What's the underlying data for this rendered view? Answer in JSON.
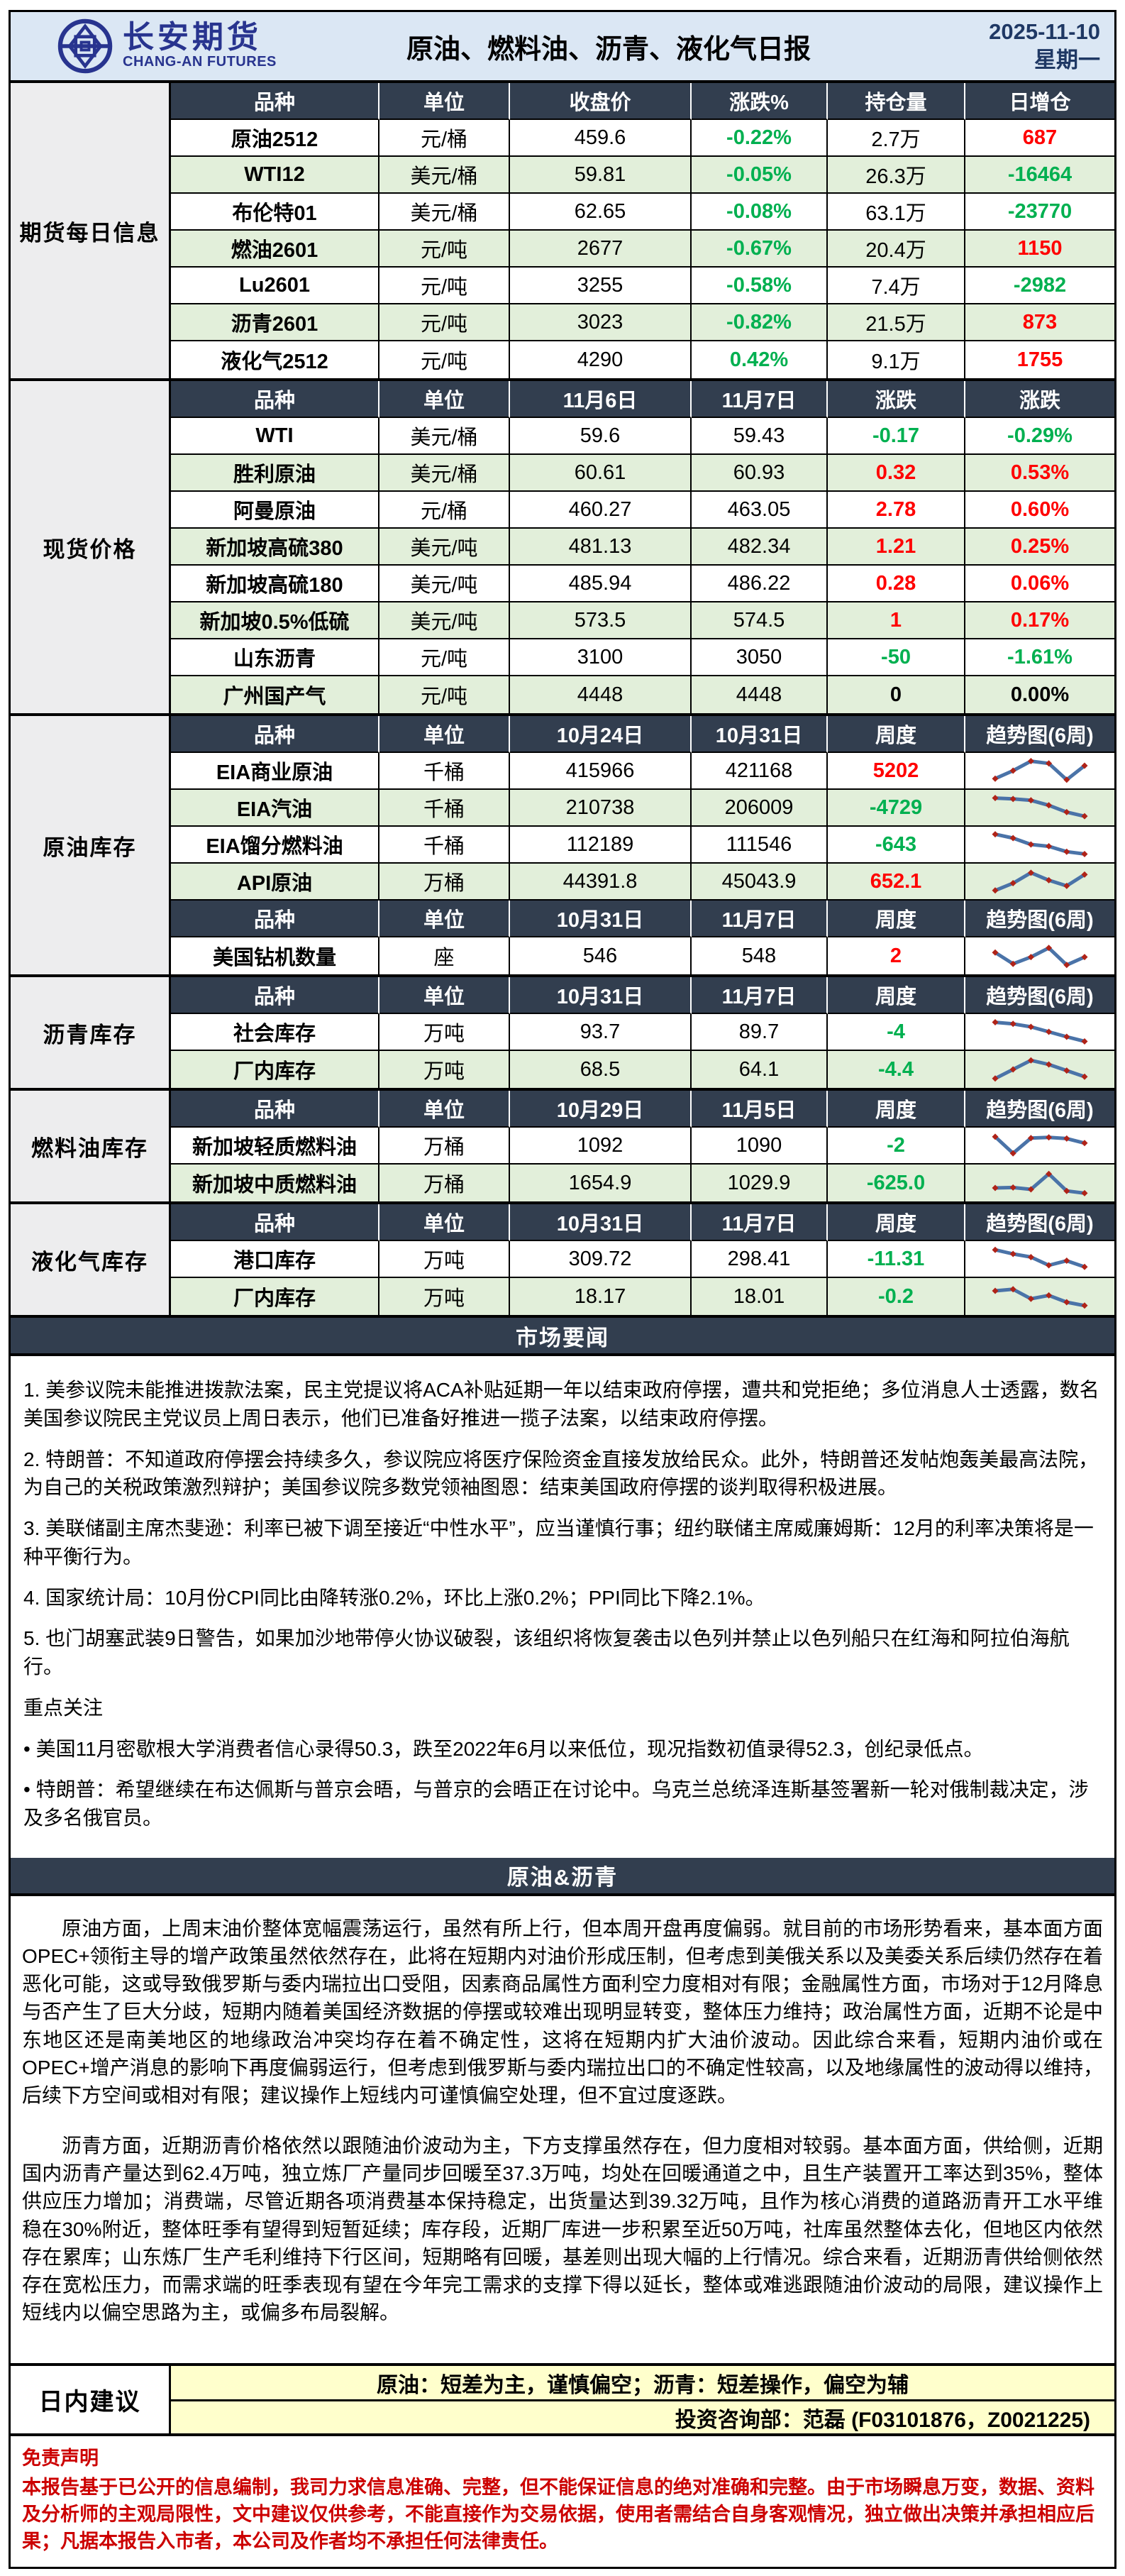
{
  "colors": {
    "top_bg": "#dbe7f4",
    "brand_blue": "#28348f",
    "accent_navy": "#1f3864",
    "header_bg": "#323e4f",
    "row_alt_green": "#e2efda",
    "label_gray": "#ededee",
    "up_red": "#ff0000",
    "down_green": "#00b050",
    "advice_yellow": "#ffffcc",
    "disclaimer_red": "#cc0000",
    "spark_line": "#4a73a8",
    "spark_marker": "#b02318"
  },
  "header": {
    "brand_cn": "长安期货",
    "brand_en": "CHANG-AN FUTURES",
    "title": "原油、燃料油、沥青、液化气日报",
    "date": "2025-11-10",
    "weekday": "星期一"
  },
  "table_sections": [
    {
      "id": "futures",
      "label": "期货每日信息",
      "blocks": [
        {
          "headers": [
            "品种",
            "单位",
            "收盘价",
            "涨跌%",
            "持仓量",
            "日增仓"
          ],
          "rows": [
            [
              {
                "t": "原油2512"
              },
              {
                "t": "元/桶"
              },
              {
                "t": "459.6"
              },
              {
                "t": "-0.22%",
                "c": "green"
              },
              {
                "t": "2.7万"
              },
              {
                "t": "687",
                "c": "red"
              }
            ],
            [
              {
                "t": "WTI12"
              },
              {
                "t": "美元/桶"
              },
              {
                "t": "59.81"
              },
              {
                "t": "-0.05%",
                "c": "green"
              },
              {
                "t": "26.3万"
              },
              {
                "t": "-16464",
                "c": "green"
              }
            ],
            [
              {
                "t": "布伦特01"
              },
              {
                "t": "美元/桶"
              },
              {
                "t": "62.65"
              },
              {
                "t": "-0.08%",
                "c": "green"
              },
              {
                "t": "63.1万"
              },
              {
                "t": "-23770",
                "c": "green"
              }
            ],
            [
              {
                "t": "燃油2601"
              },
              {
                "t": "元/吨"
              },
              {
                "t": "2677"
              },
              {
                "t": "-0.67%",
                "c": "green"
              },
              {
                "t": "20.4万"
              },
              {
                "t": "1150",
                "c": "red"
              }
            ],
            [
              {
                "t": "Lu2601"
              },
              {
                "t": "元/吨"
              },
              {
                "t": "3255"
              },
              {
                "t": "-0.58%",
                "c": "green"
              },
              {
                "t": "7.4万"
              },
              {
                "t": "-2982",
                "c": "green"
              }
            ],
            [
              {
                "t": "沥青2601"
              },
              {
                "t": "元/吨"
              },
              {
                "t": "3023"
              },
              {
                "t": "-0.82%",
                "c": "green"
              },
              {
                "t": "21.5万"
              },
              {
                "t": "873",
                "c": "red"
              }
            ],
            [
              {
                "t": "液化气2512"
              },
              {
                "t": "元/吨"
              },
              {
                "t": "4290"
              },
              {
                "t": "0.42%",
                "c": "green"
              },
              {
                "t": "9.1万"
              },
              {
                "t": "1755",
                "c": "red"
              }
            ]
          ]
        }
      ]
    },
    {
      "id": "spot",
      "label": "现货价格",
      "blocks": [
        {
          "headers": [
            "品种",
            "单位",
            "11月6日",
            "11月7日",
            "涨跌",
            "涨跌"
          ],
          "rows": [
            [
              {
                "t": "WTI"
              },
              {
                "t": "美元/桶"
              },
              {
                "t": "59.6"
              },
              {
                "t": "59.43"
              },
              {
                "t": "-0.17",
                "c": "green"
              },
              {
                "t": "-0.29%",
                "c": "green"
              }
            ],
            [
              {
                "t": "胜利原油"
              },
              {
                "t": "美元/桶"
              },
              {
                "t": "60.61"
              },
              {
                "t": "60.93"
              },
              {
                "t": "0.32",
                "c": "red"
              },
              {
                "t": "0.53%",
                "c": "red"
              }
            ],
            [
              {
                "t": "阿曼原油"
              },
              {
                "t": "元/桶"
              },
              {
                "t": "460.27"
              },
              {
                "t": "463.05"
              },
              {
                "t": "2.78",
                "c": "red"
              },
              {
                "t": "0.60%",
                "c": "red"
              }
            ],
            [
              {
                "t": "新加坡高硫380"
              },
              {
                "t": "美元/吨"
              },
              {
                "t": "481.13"
              },
              {
                "t": "482.34"
              },
              {
                "t": "1.21",
                "c": "red"
              },
              {
                "t": "0.25%",
                "c": "red"
              }
            ],
            [
              {
                "t": "新加坡高硫180"
              },
              {
                "t": "美元/吨"
              },
              {
                "t": "485.94"
              },
              {
                "t": "486.22"
              },
              {
                "t": "0.28",
                "c": "red"
              },
              {
                "t": "0.06%",
                "c": "red"
              }
            ],
            [
              {
                "t": "新加坡0.5%低硫"
              },
              {
                "t": "美元/吨"
              },
              {
                "t": "573.5"
              },
              {
                "t": "574.5"
              },
              {
                "t": "1",
                "c": "red"
              },
              {
                "t": "0.17%",
                "c": "red"
              }
            ],
            [
              {
                "t": "山东沥青"
              },
              {
                "t": "元/吨"
              },
              {
                "t": "3100"
              },
              {
                "t": "3050"
              },
              {
                "t": "-50",
                "c": "green"
              },
              {
                "t": "-1.61%",
                "c": "green"
              }
            ],
            [
              {
                "t": "广州国产气"
              },
              {
                "t": "元/吨"
              },
              {
                "t": "4448"
              },
              {
                "t": "4448"
              },
              {
                "t": "0",
                "c": "zero"
              },
              {
                "t": "0.00%",
                "c": "zero"
              }
            ]
          ]
        }
      ]
    },
    {
      "id": "crude_inventory",
      "label": "原油库存",
      "blocks": [
        {
          "headers": [
            "品种",
            "单位",
            "10月24日",
            "10月31日",
            "周度",
            "趋势图(6周)"
          ],
          "rows": [
            [
              {
                "t": "EIA商业原油"
              },
              {
                "t": "千桶"
              },
              {
                "t": "415966"
              },
              {
                "t": "421168"
              },
              {
                "t": "5202",
                "c": "red"
              },
              {
                "spark": [
                  0.15,
                  0.5,
                  0.92,
                  0.82,
                  0.1,
                  0.72
                ]
              }
            ],
            [
              {
                "t": "EIA汽油"
              },
              {
                "t": "千桶"
              },
              {
                "t": "210738"
              },
              {
                "t": "206009"
              },
              {
                "t": "-4729",
                "c": "green"
              },
              {
                "spark": [
                  0.92,
                  0.88,
                  0.82,
                  0.6,
                  0.3,
                  0.12
                ]
              }
            ],
            [
              {
                "t": "EIA馏分燃料油"
              },
              {
                "t": "千桶"
              },
              {
                "t": "112189"
              },
              {
                "t": "111546"
              },
              {
                "t": "-643",
                "c": "green"
              },
              {
                "spark": [
                  0.95,
                  0.78,
                  0.5,
                  0.42,
                  0.18,
                  0.08
                ]
              }
            ],
            [
              {
                "t": "API原油"
              },
              {
                "t": "万桶"
              },
              {
                "t": "44391.8"
              },
              {
                "t": "45043.9"
              },
              {
                "t": "652.1",
                "c": "red"
              },
              {
                "spark": [
                  0.1,
                  0.42,
                  0.88,
                  0.55,
                  0.3,
                  0.8
                ]
              }
            ]
          ]
        },
        {
          "headers": [
            "品种",
            "单位",
            "10月31日",
            "11月7日",
            "周度",
            "趋势图(6周)"
          ],
          "rows": [
            [
              {
                "t": "美国钻机数量"
              },
              {
                "t": "座"
              },
              {
                "t": "546"
              },
              {
                "t": "548"
              },
              {
                "t": "2",
                "c": "red"
              },
              {
                "spark": [
                  0.65,
                  0.15,
                  0.45,
                  0.85,
                  0.1,
                  0.45
                ]
              }
            ]
          ]
        }
      ]
    },
    {
      "id": "asphalt_inventory",
      "label": "沥青库存",
      "blocks": [
        {
          "headers": [
            "品种",
            "单位",
            "10月31日",
            "11月7日",
            "周度",
            "趋势图(6周)"
          ],
          "rows": [
            [
              {
                "t": "社会库存"
              },
              {
                "t": "万吨"
              },
              {
                "t": "93.7"
              },
              {
                "t": "89.7"
              },
              {
                "t": "-4",
                "c": "green"
              },
              {
                "spark": [
                  0.92,
                  0.85,
                  0.72,
                  0.5,
                  0.28,
                  0.08
                ]
              }
            ],
            [
              {
                "t": "厂内库存"
              },
              {
                "t": "万吨"
              },
              {
                "t": "68.5"
              },
              {
                "t": "64.1"
              },
              {
                "t": "-4.4",
                "c": "green"
              },
              {
                "spark": [
                  0.1,
                  0.5,
                  0.9,
                  0.72,
                  0.45,
                  0.18
                ]
              }
            ]
          ]
        }
      ]
    },
    {
      "id": "fuel_inventory",
      "label": "燃料油库存",
      "blocks": [
        {
          "headers": [
            "品种",
            "单位",
            "10月29日",
            "11月5日",
            "周度",
            "趋势图(6周)"
          ],
          "rows": [
            [
              {
                "t": "新加坡轻质燃料油"
              },
              {
                "t": "万桶"
              },
              {
                "t": "1092"
              },
              {
                "t": "1090"
              },
              {
                "t": "-2",
                "c": "green"
              },
              {
                "spark": [
                  0.88,
                  0.15,
                  0.82,
                  0.85,
                  0.8,
                  0.6
                ]
              }
            ],
            [
              {
                "t": "新加坡中质燃料油"
              },
              {
                "t": "万桶"
              },
              {
                "t": "1654.9"
              },
              {
                "t": "1029.9"
              },
              {
                "t": "-625.0",
                "c": "green"
              },
              {
                "spark": [
                  0.28,
                  0.3,
                  0.22,
                  0.9,
                  0.15,
                  0.05
                ]
              }
            ]
          ]
        }
      ]
    },
    {
      "id": "lpg_inventory",
      "label": "液化气库存",
      "blocks": [
        {
          "headers": [
            "品种",
            "单位",
            "10月31日",
            "11月7日",
            "周度",
            "趋势图(6周)"
          ],
          "rows": [
            [
              {
                "t": "港口库存"
              },
              {
                "t": "万吨"
              },
              {
                "t": "309.72"
              },
              {
                "t": "298.41"
              },
              {
                "t": "-11.31",
                "c": "green"
              },
              {
                "spark": [
                  0.9,
                  0.72,
                  0.58,
                  0.22,
                  0.42,
                  0.15
                ]
              }
            ],
            [
              {
                "t": "厂内库存"
              },
              {
                "t": "万吨"
              },
              {
                "t": "18.17"
              },
              {
                "t": "18.01"
              },
              {
                "t": "-0.2",
                "c": "green"
              },
              {
                "spark": [
                  0.75,
                  0.82,
                  0.4,
                  0.55,
                  0.25,
                  0.1
                ]
              }
            ]
          ]
        }
      ]
    }
  ],
  "news": {
    "band_title": "市场要闻",
    "items": [
      "1. 美参议院未能推进拨款法案，民主党提议将ACA补贴延期一年以结束政府停摆，遭共和党拒绝；多位消息人士透露，数名美国参议院民主党议员上周日表示，他们已准备好推进一揽子法案，以结束政府停摆。",
      "2. 特朗普：不知道政府停摆会持续多久，参议院应将医疗保险资金直接发放给民众。此外，特朗普还发帖炮轰美最高法院，为自己的关税政策激烈辩护；美国参议院多数党领袖图恩：结束美国政府停摆的谈判取得积极进展。",
      "3. 美联储副主席杰斐逊：利率已被下调至接近“中性水平”，应当谨慎行事；纽约联储主席威廉姆斯：12月的利率决策将是一种平衡行为。",
      "4. 国家统计局：10月份CPI同比由降转涨0.2%，环比上涨0.2%；PPI同比下降2.1%。",
      "5. 也门胡塞武装9日警告，如果加沙地带停火协议破裂，该组织将恢复袭击以色列并禁止以色列船只在红海和阿拉伯海航行。"
    ],
    "focus_title": "重点关注",
    "focus_items": [
      "• 美国11月密歇根大学消费者信心录得50.3，跌至2022年6月以来低位，现况指数初值录得52.3，创纪录低点。",
      "• 特朗普：希望继续在布达佩斯与普京会晤，与普京的会晤正在讨论中。乌克兰总统泽连斯基签署新一轮对俄制裁决定，涉及多名俄官员。"
    ]
  },
  "analysis": {
    "band_title": "原油&沥青",
    "paragraphs": [
      "原油方面，上周末油价整体宽幅震荡运行，虽然有所上行，但本周开盘再度偏弱。就目前的市场形势看来，基本面方面OPEC+领衔主导的增产政策虽然依然存在，此将在短期内对油价形成压制，但考虑到美俄关系以及美委关系后续仍然存在着恶化可能，这或导致俄罗斯与委内瑞拉出口受阻，因素商品属性方面利空力度相对有限；金融属性方面，市场对于12月降息与否产生了巨大分歧，短期内随着美国经济数据的停摆或较难出现明显转变，整体压力维持；政治属性方面，近期不论是中东地区还是南美地区的地缘政治冲突均存在着不确定性，这将在短期内扩大油价波动。因此综合来看，短期内油价或在OPEC+增产消息的影响下再度偏弱运行，但考虑到俄罗斯与委内瑞拉出口的不确定性较高，以及地缘属性的波动得以维持，后续下方空间或相对有限；建议操作上短线内可谨慎偏空处理，但不宜过度逐跌。",
      "沥青方面，近期沥青价格依然以跟随油价波动为主，下方支撑虽然存在，但力度相对较弱。基本面方面，供给侧，近期国内沥青产量达到62.4万吨，独立炼厂产量同步回暖至37.3万吨，均处在回暖通道之中，且生产装置开工率达到35%，整体供应压力增加；消费端，尽管近期各项消费基本保持稳定，出货量达到39.32万吨，且作为核心消费的道路沥青开工水平维稳在30%附近，整体旺季有望得到短暂延续；库存段，近期厂库进一步积累至近50万吨，社库虽然整体去化，但地区内依然存在累库；山东炼厂生产毛利维持下行区间，短期略有回暖，基差则出现大幅的上行情况。综合来看，近期沥青供给侧依然存在宽松压力，而需求端的旺季表现有望在今年完工需求的支撑下得以延长，整体或难逃跟随油价波动的局限，建议操作上短线内以偏空思路为主，或偏多布局裂解。"
    ]
  },
  "advice": {
    "label": "日内建议",
    "products_line": "原油：短差为主，谨慎偏空；沥青：短差操作，偏空为辅",
    "dept_line": "投资咨询部：范磊 (F03101876，Z0021225)"
  },
  "disclaimer": {
    "title": "免责声明",
    "body": "本报告基于已公开的信息编制，我司力求信息准确、完整，但不能保证信息的绝对准确和完整。由于市场瞬息万变，数据、资料及分析师的主观局限性，文中建议仅供参考，不能直接作为交易依据，使用者需结合自身客观情况，独立做出决策并承担相应后果；凡据本报告入市者，本公司及作者均不承担任何法律责任。"
  }
}
